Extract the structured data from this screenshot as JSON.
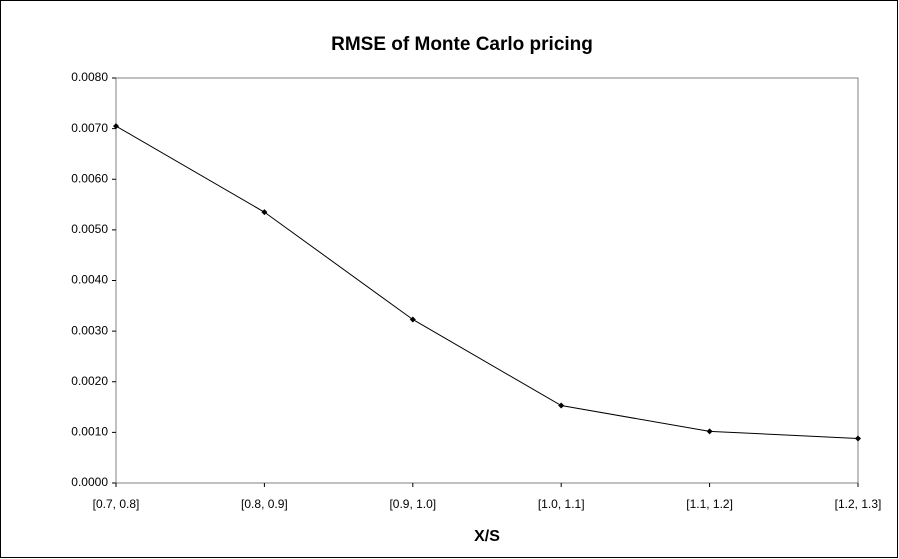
{
  "chart_data": {
    "type": "line",
    "title": "RMSE of Monte Carlo pricing",
    "x_label": "X/S",
    "categories": [
      "[0.7, 0.8]",
      "[0.8, 0.9]",
      "[0.9, 1.0]",
      "[1.0, 1.1]",
      "[1.1, 1.2]",
      "[1.2, 1.3]"
    ],
    "values": [
      0.00705,
      0.00535,
      0.00323,
      0.00153,
      0.00102,
      0.00088
    ],
    "color": "#000000",
    "ylim": [
      0,
      0.008
    ],
    "yticks": [
      {
        "value": 0,
        "label": "0.0000"
      },
      {
        "value": 0.001,
        "label": "0.0010"
      },
      {
        "value": 0.002,
        "label": "0.0020"
      },
      {
        "value": 0.003,
        "label": "0.0030"
      },
      {
        "value": 0.004,
        "label": "0.0040"
      },
      {
        "value": 0.005,
        "label": "0.0050"
      },
      {
        "value": 0.006,
        "label": "0.0060"
      },
      {
        "value": 0.007,
        "label": "0.0070"
      },
      {
        "value": 0.008,
        "label": "0.0080"
      }
    ],
    "grid": false
  }
}
